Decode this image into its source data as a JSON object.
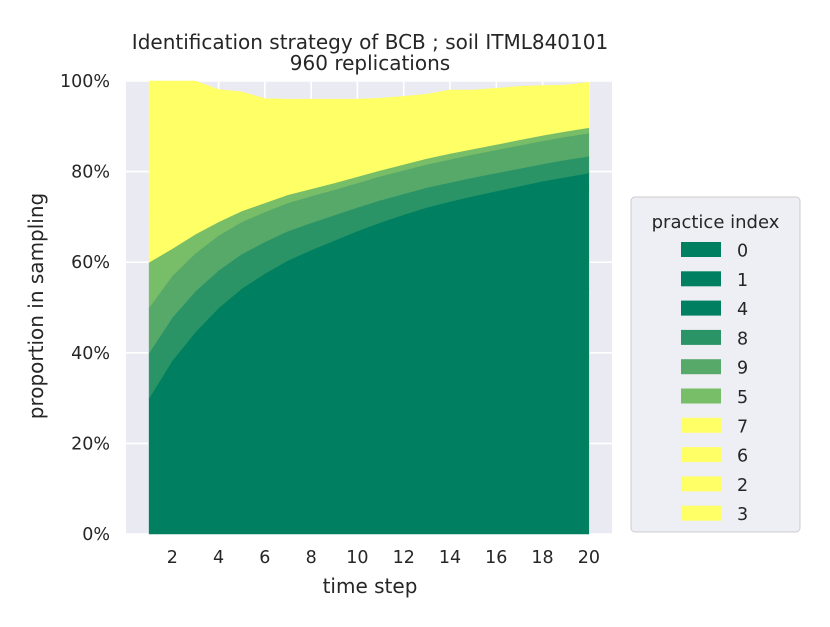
{
  "chart_data": {
    "type": "area",
    "stacked": true,
    "title_line1": "Identification strategy of BCB ; soil ITML840101",
    "title_line2": "960 replications",
    "xlabel": "time step",
    "ylabel": "proportion in sampling",
    "xlim": [
      0,
      21
    ],
    "ylim": [
      0,
      100
    ],
    "x_ticks": [
      2,
      4,
      6,
      8,
      10,
      12,
      14,
      16,
      18,
      20
    ],
    "y_ticks": [
      0,
      20,
      40,
      60,
      80,
      100
    ],
    "y_tick_labels": [
      "0%",
      "20%",
      "40%",
      "60%",
      "80%",
      "100%"
    ],
    "grid": true,
    "x": [
      1,
      2,
      3,
      4,
      5,
      6,
      7,
      8,
      9,
      10,
      11,
      12,
      13,
      14,
      15,
      16,
      17,
      18,
      19,
      20
    ],
    "legend": {
      "title": "practice index",
      "position": "right",
      "entries": [
        "0",
        "1",
        "4",
        "8",
        "9",
        "5",
        "7",
        "6",
        "2",
        "3"
      ]
    },
    "series": [
      {
        "name": "0",
        "color": "#008060",
        "values": [
          20,
          27,
          32,
          36,
          39,
          41,
          42.7,
          44,
          45.3,
          46.5,
          47.6,
          48.5,
          49.3,
          50.1,
          50.9,
          51.6,
          52.3,
          53,
          53.6,
          54.2
        ]
      },
      {
        "name": "1",
        "color": "#008060",
        "values": [
          10,
          11,
          12,
          13,
          14,
          15,
          16,
          16.8,
          17.5,
          18.2,
          18.8,
          19.4,
          20,
          20.4,
          20.7,
          21,
          21.3,
          21.6,
          21.8,
          22.0
        ]
      },
      {
        "name": "4",
        "color": "#008060",
        "values": [
          0,
          0.3,
          0.6,
          0.9,
          1.2,
          1.5,
          1.7,
          1.9,
          2.0,
          2.2,
          2.4,
          2.6,
          2.8,
          2.9,
          3.0,
          3.1,
          3.2,
          3.3,
          3.4,
          3.5
        ]
      },
      {
        "name": "8",
        "color": "#2a9467",
        "values": [
          10,
          9.5,
          9,
          8.3,
          7.6,
          7,
          6.5,
          6,
          5.6,
          5.2,
          4.9,
          4.6,
          4.4,
          4.2,
          4.1,
          4.0,
          3.9,
          3.8,
          3.8,
          3.7
        ]
      },
      {
        "name": "9",
        "color": "#57a96a",
        "values": [
          10,
          9.2,
          8.4,
          7.7,
          7.1,
          6.6,
          6.2,
          5.9,
          5.6,
          5.4,
          5.3,
          5.2,
          5.1,
          5.1,
          5.1,
          5.1,
          5.1,
          5.1,
          5.1,
          5.1
        ]
      },
      {
        "name": "5",
        "color": "#78bd67",
        "values": [
          10,
          6,
          4.2,
          3.0,
          2.4,
          2.0,
          1.8,
          1.6,
          1.5,
          1.4,
          1.3,
          1.3,
          1.3,
          1.3,
          1.2,
          1.2,
          1.2,
          1.2,
          1.2,
          1.2
        ]
      },
      {
        "name": "7",
        "color": "#ffff66",
        "values": [
          10,
          9.5,
          8.5,
          7.5,
          6.5,
          5.5,
          5,
          4.5,
          4,
          3.7,
          3.4,
          3.1,
          2.9,
          2.7,
          2.5,
          2.3,
          2.1,
          2.0,
          1.9,
          1.8
        ]
      },
      {
        "name": "6",
        "color": "#ffff66",
        "values": [
          10,
          9.5,
          8.5,
          7.5,
          6.5,
          5.5,
          5,
          4.5,
          4,
          3.7,
          3.4,
          3.1,
          2.9,
          2.7,
          2.5,
          2.3,
          2.1,
          2.0,
          1.9,
          1.8
        ]
      },
      {
        "name": "2",
        "color": "#ffff66",
        "values": [
          10,
          9,
          8.4,
          7.6,
          7,
          6.4,
          5.6,
          5.4,
          5.3,
          4.9,
          4.6,
          4.6,
          4.3,
          4.1,
          4.0,
          3.9,
          3.8,
          3.5,
          3.4,
          3.2
        ]
      },
      {
        "name": "3",
        "color": "#ffff66",
        "values": [
          10,
          9,
          8.4,
          6.6,
          6.3,
          5.6,
          5.5,
          5.4,
          5.2,
          4.8,
          4.5,
          4.2,
          4.1,
          4.5,
          4.0,
          3.9,
          3.8,
          3.5,
          3.0,
          3.2
        ]
      }
    ]
  }
}
